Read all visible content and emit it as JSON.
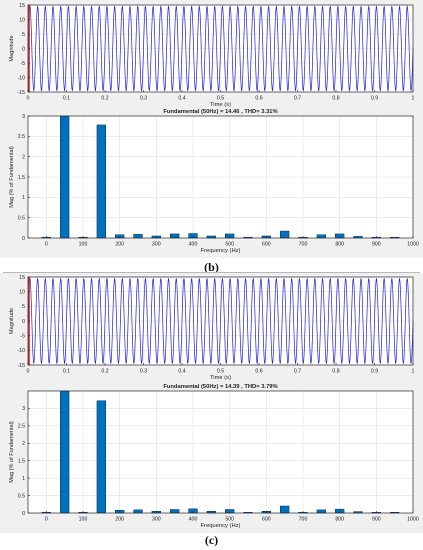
{
  "captions": {
    "b": "(b)",
    "c": "(c)"
  },
  "colors": {
    "background": "#f0f0f0",
    "axes_bg": "#ffffff",
    "sine": "#1f1fd6",
    "marker": "#d62020",
    "bar": "#0072bd",
    "bar_edge": "#0a2f57",
    "grid": "#e2e2e2"
  },
  "chart_data": [
    {
      "id": "b-time",
      "type": "line",
      "title": "",
      "xlabel": "Time (s)",
      "ylabel": "Magnitude",
      "xlim": [
        0,
        1
      ],
      "ylim": [
        -15,
        15
      ],
      "xticks": [
        0,
        0.1,
        0.2,
        0.3,
        0.4,
        0.5,
        0.6,
        0.7,
        0.8,
        0.9,
        1
      ],
      "xtick_labels": [
        "0",
        "0.1",
        "0.2",
        "0.3",
        "0.4",
        "0.5",
        "0.6",
        "0.7",
        "0.8",
        "0.9",
        "1"
      ],
      "yticks": [
        -15,
        -10,
        -5,
        0,
        5,
        10,
        15
      ],
      "ytick_labels": [
        "-15",
        "-10",
        "-5",
        "0",
        "5",
        "10",
        "15"
      ],
      "grid": true,
      "signal": {
        "amplitude": 14.46,
        "frequency_hz": 50
      },
      "marker_x": 0.0
    },
    {
      "id": "b-fft",
      "type": "bar",
      "title": "Fundamental (50Hz) = 14.46 , THD= 3.31%",
      "xlabel": "Frequency (Hz)",
      "ylabel": "Mag (% of Fundamental)",
      "xlim": [
        -50,
        1000
      ],
      "ylim": [
        0,
        3
      ],
      "xticks": [
        0,
        100,
        200,
        300,
        400,
        500,
        600,
        700,
        800,
        900,
        1000
      ],
      "xtick_labels": [
        "0",
        "100",
        "200",
        "300",
        "400",
        "500",
        "600",
        "700",
        "800",
        "900",
        "1000"
      ],
      "yticks": [
        0,
        0.5,
        1,
        1.5,
        2,
        2.5,
        3
      ],
      "ytick_labels": [
        "0",
        "0.5",
        "1",
        "1.5",
        "2",
        "2.5",
        "3"
      ],
      "grid": true,
      "x": [
        0,
        50,
        100,
        150,
        200,
        250,
        300,
        350,
        400,
        450,
        500,
        550,
        600,
        650,
        700,
        750,
        800,
        850,
        900,
        950
      ],
      "values": [
        0.02,
        3.0,
        0.02,
        2.78,
        0.08,
        0.09,
        0.05,
        0.1,
        0.11,
        0.05,
        0.1,
        0.02,
        0.05,
        0.17,
        0.02,
        0.08,
        0.1,
        0.04,
        0.02,
        0.02
      ]
    },
    {
      "id": "c-time",
      "type": "line",
      "title": "",
      "xlabel": "Time (s)",
      "ylabel": "Magnitude",
      "xlim": [
        0,
        1
      ],
      "ylim": [
        -15,
        15
      ],
      "xticks": [
        0,
        0.1,
        0.2,
        0.3,
        0.4,
        0.5,
        0.6,
        0.7,
        0.8,
        0.9,
        1
      ],
      "xtick_labels": [
        "0",
        "0.1",
        "0.2",
        "0.3",
        "0.4",
        "0.5",
        "0.6",
        "0.7",
        "0.8",
        "0.9",
        "1"
      ],
      "yticks": [
        -15,
        -10,
        -5,
        0,
        5,
        10,
        15
      ],
      "ytick_labels": [
        "-15",
        "-10",
        "-5",
        "0",
        "5",
        "10",
        "15"
      ],
      "grid": true,
      "signal": {
        "amplitude": 14.39,
        "frequency_hz": 50
      },
      "marker_x": 0.0
    },
    {
      "id": "c-fft",
      "type": "bar",
      "title": "Fundamental (50Hz) = 14.39 , THD= 3.79%",
      "xlabel": "Frequency (Hz)",
      "ylabel": "Mag (% of Fundamental)",
      "xlim": [
        -50,
        1000
      ],
      "ylim": [
        0,
        3.5
      ],
      "xticks": [
        0,
        100,
        200,
        300,
        400,
        500,
        600,
        700,
        800,
        900,
        1000
      ],
      "xtick_labels": [
        "0",
        "100",
        "200",
        "300",
        "400",
        "500",
        "600",
        "700",
        "800",
        "900",
        "1000"
      ],
      "yticks": [
        0,
        0.5,
        1,
        1.5,
        2,
        2.5,
        3
      ],
      "ytick_labels": [
        "0",
        "0.5",
        "1",
        "1.5",
        "2",
        "2.5",
        "3"
      ],
      "grid": true,
      "x": [
        0,
        50,
        100,
        150,
        200,
        250,
        300,
        350,
        400,
        450,
        500,
        550,
        600,
        650,
        700,
        750,
        800,
        850,
        900,
        950
      ],
      "values": [
        0.02,
        3.5,
        0.02,
        3.22,
        0.08,
        0.09,
        0.05,
        0.1,
        0.12,
        0.05,
        0.1,
        0.02,
        0.05,
        0.2,
        0.02,
        0.09,
        0.11,
        0.04,
        0.02,
        0.02
      ]
    }
  ]
}
